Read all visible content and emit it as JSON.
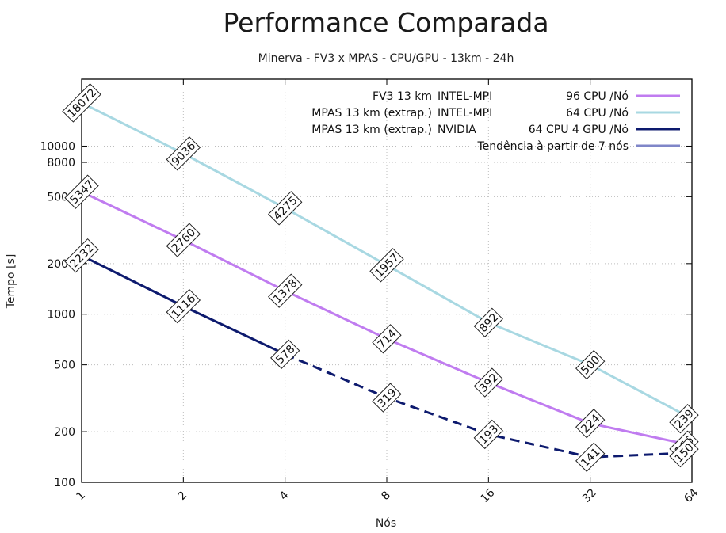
{
  "chart_data": {
    "type": "line",
    "title": "Performance Comparada",
    "subtitle": "Minerva - FV3 x MPAS - CPU/GPU - 13km - 24h",
    "xlabel": "Nós",
    "ylabel": "Tempo [s]",
    "x_scale": "log2",
    "y_scale": "log",
    "ylim": [
      100,
      25000
    ],
    "grid": true,
    "legend_position": "top-right",
    "x": [
      1,
      2,
      4,
      8,
      16,
      32,
      64
    ],
    "x_tick_labels": [
      "1",
      "2",
      "4",
      "8",
      "16",
      "32",
      "64"
    ],
    "y_ticks": [
      100,
      200,
      500,
      1000,
      2000,
      5000,
      8000,
      10000
    ],
    "y_tick_labels": [
      "100",
      "200",
      "500",
      "1000",
      "2000",
      "5000",
      "8000",
      "10000"
    ],
    "series": [
      {
        "name": "FV3  13 km   INTEL-MPI                96 CPU /Nó",
        "color": "#c07cf0",
        "values": [
          5347,
          2760,
          1378,
          714,
          392,
          224,
          166
        ],
        "labels": [
          "5347",
          "2760",
          "1378",
          "714",
          "392",
          "224",
          "166"
        ]
      },
      {
        "name": "MPAS 13 km (extrap.)  INTEL-MPI           64 CPU /Nó",
        "color": "#a8d8e2",
        "values": [
          18072,
          9036,
          4275,
          1957,
          892,
          500,
          239
        ],
        "labels": [
          "18072",
          "9036",
          "4275",
          "1957",
          "892",
          "500",
          "239"
        ]
      },
      {
        "name": "MPAS 13 km (extrap.)  NVIDIA      64 CPU 4 GPU /Nó",
        "color": "#0d1a6e",
        "values": [
          2232,
          1116,
          578
        ],
        "x": [
          1,
          2,
          4
        ],
        "labels": [
          "2232",
          "1116",
          "578"
        ]
      },
      {
        "name": "Tendência à partir de 7 nós",
        "color": "#7f86c8",
        "values": [
          578,
          319,
          193,
          141,
          150
        ],
        "x": [
          4,
          8,
          16,
          32,
          64
        ],
        "labels": [
          "",
          "319",
          "193",
          "141",
          "150"
        ]
      }
    ]
  }
}
